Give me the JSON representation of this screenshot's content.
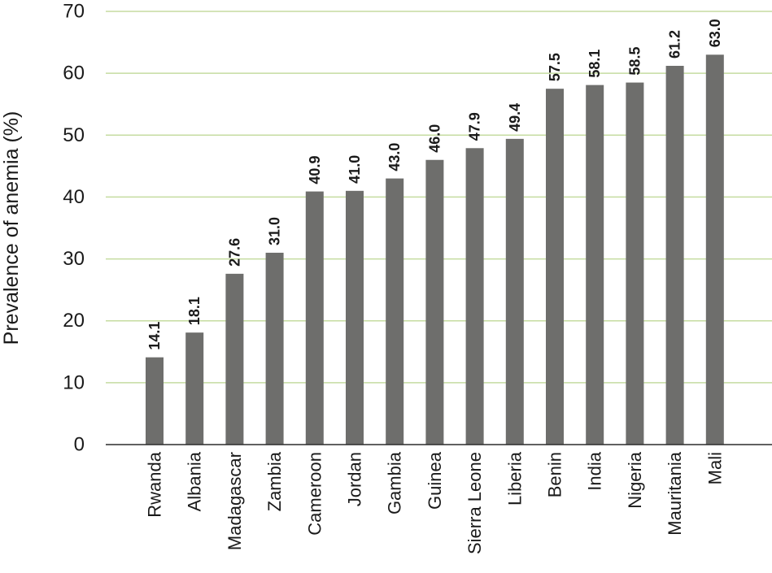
{
  "chart_data": {
    "type": "bar",
    "title": "",
    "xlabel": "",
    "ylabel": "Prevalence of anemia (%)",
    "ylim": [
      0,
      70
    ],
    "yticks": [
      0,
      10,
      20,
      30,
      40,
      50,
      60,
      70
    ],
    "grid": true,
    "categories": [
      "Rwanda",
      "Albania",
      "Madagascar",
      "Zambia",
      "Cameroon",
      "Jordan",
      "Gambia",
      "Guinea",
      "Sierra Leone",
      "Liberia",
      "Benin",
      "India",
      "Nigeria",
      "Mauritania",
      "Mali"
    ],
    "values": [
      14.1,
      18.1,
      27.6,
      31.0,
      40.9,
      41.0,
      43.0,
      46.0,
      47.9,
      49.4,
      57.5,
      58.1,
      58.5,
      61.2,
      63.0
    ],
    "value_labels": [
      "14.1",
      "18.1",
      "27.6",
      "31.0",
      "40.9",
      "41.0",
      "43.0",
      "46.0",
      "47.9",
      "49.4",
      "57.5",
      "58.1",
      "58.5",
      "61.2",
      "63.0"
    ],
    "colors": {
      "bar": "#6e6e6c",
      "grid": "#c5dca0",
      "axis": "#2b2b2b"
    }
  }
}
